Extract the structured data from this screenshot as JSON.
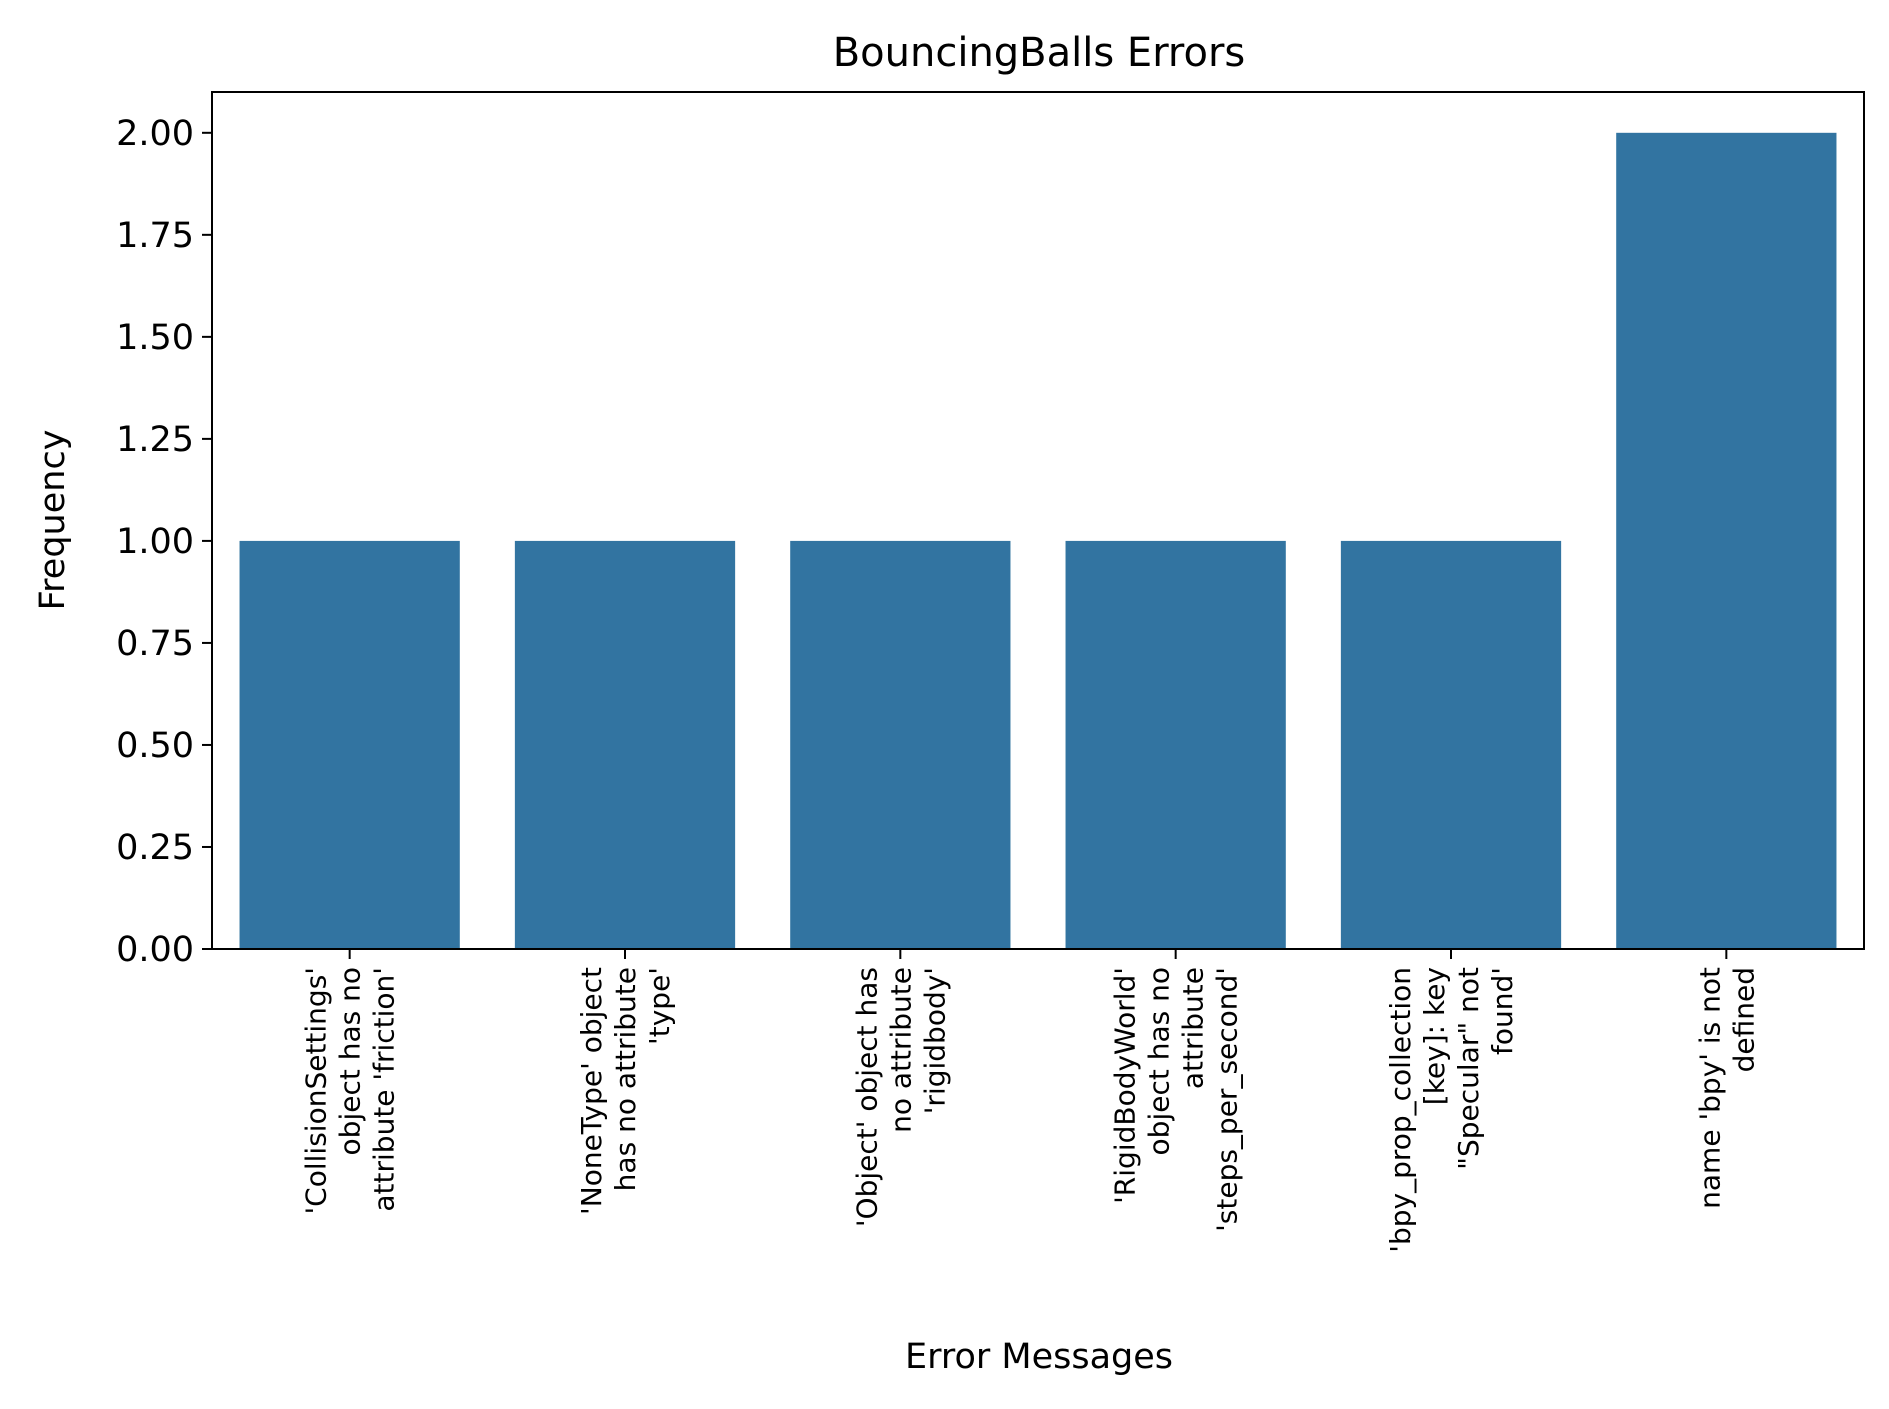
{
  "chart_data": {
    "type": "bar",
    "title": "BouncingBalls Errors",
    "xlabel": "Error Messages",
    "ylabel": "Frequency",
    "ylim": [
      0,
      2.1
    ],
    "yticks": [
      "0.00",
      "0.25",
      "0.50",
      "0.75",
      "1.00",
      "1.25",
      "1.50",
      "1.75",
      "2.00"
    ],
    "grid": false,
    "bar_color": "#3274a1",
    "categories": [
      [
        "'CollisionSettings'",
        "object has no",
        "attribute 'friction'"
      ],
      [
        "'NoneType' object",
        "has no attribute",
        "'type'"
      ],
      [
        "'Object' object has",
        "no attribute",
        "'rigidbody'"
      ],
      [
        "'RigidBodyWorld'",
        "object has no",
        "attribute",
        "'steps_per_second'"
      ],
      [
        "'bpy_prop_collection",
        "[key]: key",
        "\"Specular\" not",
        "found'"
      ],
      [
        "name 'bpy' is not",
        "defined"
      ]
    ],
    "values": [
      1,
      1,
      1,
      1,
      1,
      2
    ]
  }
}
